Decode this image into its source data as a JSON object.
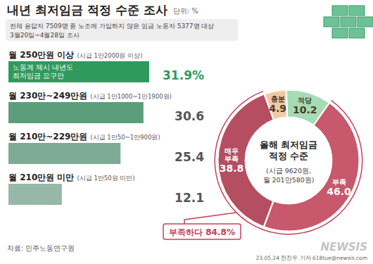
{
  "header": {
    "title": "내년 최저임금 적정 수준 조사",
    "unit": "단위: %",
    "subtitle": [
      "전체 응답자 7509명 중 노조에 가입하지 않은 임금 노동자 5377명 대상",
      "3월20일~4월28일 조사"
    ]
  },
  "chart_data": [
    {
      "type": "bar",
      "orientation": "horizontal",
      "categories": [
        "월 250만원 이상",
        "월 230만~249만원",
        "월 210만~229만원",
        "월 210만원 미만"
      ],
      "category_notes": [
        "(시급 1만2000원 이상)",
        "(시급 1만1000~1만1900원)",
        "(시급 1만50~1만900원)",
        "(시급 1만50원 미만)"
      ],
      "values": [
        31.9,
        30.6,
        25.4,
        12.1
      ],
      "value_labels": [
        "31.9%",
        "30.6",
        "25.4",
        "12.1"
      ],
      "colors": [
        "#2f9a5c",
        "#5c9e7b",
        "#7eab93",
        "#96b8a8"
      ],
      "annotation": [
        "노동계 제시 내년도",
        "최저임금 요구안"
      ],
      "data_labels": true,
      "tick_labels": false,
      "grid": false
    },
    {
      "type": "pie",
      "title": [
        "올해 최저임금",
        "적정 수준"
      ],
      "subtitle": [
        "(시급 9620원,",
        "월 201만580원)"
      ],
      "categories": [
        "충분",
        "적당",
        "부족",
        "매우 부족"
      ],
      "values": [
        4.9,
        10.2,
        46.0,
        38.8
      ],
      "value_labels": [
        "4.9",
        "10.2",
        "46.0",
        "38.8"
      ],
      "colors": [
        "#f2c9a4",
        "#a6dbb3",
        "#c8586b",
        "#b44e60"
      ],
      "annotation": "부족하다 84.8%",
      "data_labels": true
    }
  ],
  "footer": {
    "source": "자료: 민주노동연구원",
    "credit": "23.05.24 전진우 기자 618tue@newsis.com",
    "logo": "NEWSIS"
  }
}
